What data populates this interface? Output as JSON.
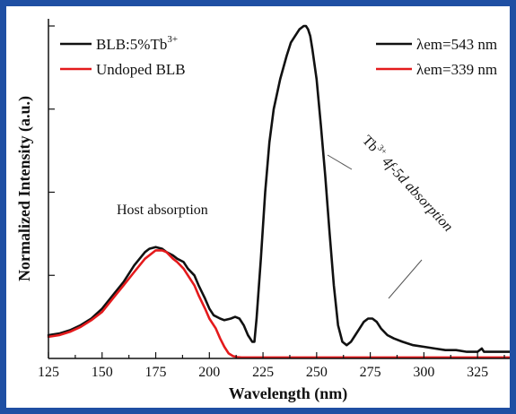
{
  "chart_data": {
    "type": "line",
    "title": "",
    "xlabel": "Wavelength (nm)",
    "ylabel": "Normalized Intensity (a.u.)",
    "xlim": [
      125,
      340
    ],
    "ylim": [
      0,
      1.0
    ],
    "x_ticks": [
      125,
      150,
      175,
      200,
      225,
      250,
      275,
      300,
      325
    ],
    "grid": false,
    "legend_left": [
      {
        "label": "BLB:5%Tb",
        "superscript": "3+",
        "color": "#111111"
      },
      {
        "label": "Undoped BLB",
        "color": "#e41a1c"
      }
    ],
    "legend_right": [
      {
        "label": "λem=543 nm",
        "color": "#111111"
      },
      {
        "label": "λem=339 nm",
        "color": "#e41a1c"
      }
    ],
    "annotations": {
      "host": "Host absorption",
      "tb_prefix": "Tb",
      "tb_sup": "3+",
      "tb_rest": " 4f-5d absorption"
    },
    "series": [
      {
        "name": "BLB:5%Tb3+",
        "color": "#111111",
        "x": [
          125,
          130,
          135,
          140,
          145,
          150,
          155,
          160,
          165,
          170,
          172,
          175,
          178,
          180,
          183,
          185,
          188,
          190,
          193,
          195,
          198,
          200,
          202,
          205,
          207,
          210,
          212,
          214,
          216,
          218,
          220,
          221,
          222,
          224,
          226,
          228,
          230,
          233,
          236,
          238,
          240,
          242,
          244,
          245,
          246,
          247,
          248,
          250,
          252,
          254,
          256,
          258,
          260,
          262,
          264,
          266,
          268,
          270,
          272,
          274,
          276,
          278,
          280,
          283,
          286,
          290,
          295,
          300,
          305,
          310,
          315,
          320,
          325,
          327,
          328,
          329,
          330,
          335,
          340
        ],
        "y": [
          0.07,
          0.075,
          0.085,
          0.1,
          0.12,
          0.15,
          0.19,
          0.23,
          0.28,
          0.32,
          0.33,
          0.335,
          0.33,
          0.32,
          0.31,
          0.3,
          0.29,
          0.27,
          0.25,
          0.22,
          0.18,
          0.15,
          0.13,
          0.12,
          0.115,
          0.12,
          0.125,
          0.12,
          0.1,
          0.07,
          0.05,
          0.05,
          0.12,
          0.3,
          0.5,
          0.65,
          0.75,
          0.84,
          0.91,
          0.95,
          0.97,
          0.99,
          1.0,
          1.0,
          0.99,
          0.97,
          0.93,
          0.84,
          0.7,
          0.55,
          0.38,
          0.22,
          0.1,
          0.05,
          0.04,
          0.05,
          0.07,
          0.09,
          0.11,
          0.12,
          0.12,
          0.11,
          0.09,
          0.07,
          0.06,
          0.05,
          0.04,
          0.035,
          0.03,
          0.025,
          0.025,
          0.02,
          0.02,
          0.03,
          0.02,
          0.02,
          0.02,
          0.02,
          0.02
        ]
      },
      {
        "name": "Undoped BLB",
        "color": "#e41a1c",
        "x": [
          125,
          130,
          135,
          140,
          145,
          150,
          155,
          160,
          165,
          170,
          175,
          178,
          180,
          183,
          185,
          188,
          190,
          193,
          195,
          198,
          200,
          203,
          205,
          207,
          209,
          211,
          213,
          215,
          218,
          220,
          225,
          230,
          250,
          275,
          300,
          325,
          340
        ],
        "y": [
          0.065,
          0.07,
          0.08,
          0.095,
          0.115,
          0.14,
          0.18,
          0.22,
          0.26,
          0.3,
          0.325,
          0.325,
          0.32,
          0.3,
          0.29,
          0.27,
          0.25,
          0.22,
          0.19,
          0.15,
          0.12,
          0.09,
          0.06,
          0.035,
          0.015,
          0.007,
          0.004,
          0.003,
          0.003,
          0.003,
          0.003,
          0.003,
          0.003,
          0.003,
          0.003,
          0.003,
          0.003
        ]
      }
    ]
  }
}
